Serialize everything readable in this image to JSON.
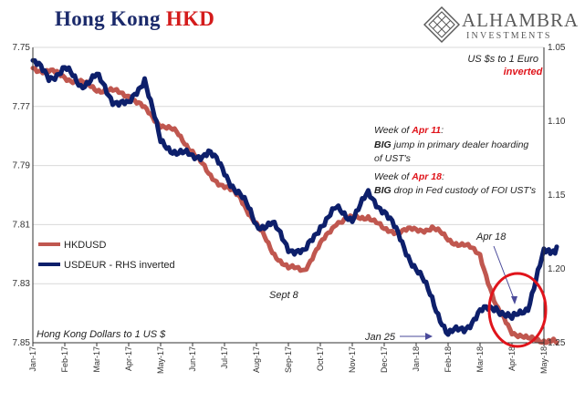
{
  "title": {
    "part1": "Hong Kong ",
    "part2": "HKD"
  },
  "brand": {
    "name": "ALHAMBRA",
    "sub": "INVESTMENTS"
  },
  "colors": {
    "hkdusd": "#c0574f",
    "usdeur": "#0d1f6b",
    "accent": "#e0141b",
    "axis": "#555555",
    "grid": "#d9d9d9",
    "title_blue": "#1b2a6b"
  },
  "chart_data": {
    "type": "line",
    "legend_placement": "left-middle",
    "grid": true,
    "x_ticks": [
      "Jan-17",
      "Feb-17",
      "Mar-17",
      "Apr-17",
      "May-17",
      "Jun-17",
      "Jul-17",
      "Aug-17",
      "Sep-17",
      "Oct-17",
      "Nov-17",
      "Dec-17",
      "Jan-18",
      "Feb-18",
      "Mar-18",
      "Apr-18",
      "May-18"
    ],
    "y_left": {
      "ticks": [
        "7.75",
        "7.77",
        "7.79",
        "7.81",
        "7.83",
        "7.85"
      ],
      "range": [
        7.75,
        7.85
      ],
      "inverted": true
    },
    "y_right": {
      "ticks": [
        "1.05",
        "1.10",
        "1.15",
        "1.20",
        "1.25"
      ],
      "range": [
        1.05,
        1.25
      ],
      "inverted": true
    },
    "series": [
      {
        "name": "HKDUSD",
        "axis": "left",
        "x": [
          0,
          0.5,
          1,
          1.5,
          2,
          2.5,
          3,
          3.5,
          4,
          4.5,
          5,
          5.5,
          6,
          6.5,
          7,
          7.5,
          8,
          8.5,
          9,
          9.5,
          10,
          10.5,
          11,
          11.5,
          12,
          12.5,
          13,
          13.5,
          14,
          14.5,
          15,
          15.5,
          16,
          16.4
        ],
        "values": [
          7.757,
          7.758,
          7.76,
          7.762,
          7.764,
          7.765,
          7.766,
          7.771,
          7.776,
          7.779,
          7.785,
          7.793,
          7.797,
          7.801,
          7.81,
          7.819,
          7.825,
          7.825,
          7.817,
          7.809,
          7.808,
          7.807,
          7.812,
          7.812,
          7.812,
          7.811,
          7.815,
          7.817,
          7.82,
          7.838,
          7.846,
          7.849,
          7.849,
          7.85
        ]
      },
      {
        "name": "USDEUR - RHS inverted",
        "axis": "right",
        "x": [
          0,
          0.5,
          1,
          1.5,
          2,
          2.5,
          3,
          3.5,
          4,
          4.5,
          5,
          5.5,
          6,
          6.5,
          7,
          7.5,
          8,
          8.5,
          9,
          9.5,
          10,
          10.5,
          11,
          11.5,
          12,
          12.5,
          13,
          13.5,
          14,
          14.5,
          15,
          15.5,
          16,
          16.4
        ],
        "values": [
          1.06,
          1.07,
          1.065,
          1.075,
          1.07,
          1.085,
          1.09,
          1.07,
          1.115,
          1.12,
          1.125,
          1.12,
          1.135,
          1.15,
          1.17,
          1.17,
          1.185,
          1.19,
          1.17,
          1.16,
          1.165,
          1.15,
          1.16,
          1.18,
          1.2,
          1.22,
          1.245,
          1.24,
          1.23,
          1.225,
          1.235,
          1.225,
          1.19,
          1.185
        ]
      }
    ],
    "annotations": [
      {
        "id": "usd-euro",
        "line1": "US $s to 1 Euro",
        "line2": "inverted"
      },
      {
        "id": "apr11",
        "prefix": "Week of ",
        "date": "Apr 11",
        "suffix": ":",
        "bold": "BIG",
        "text1": " jump in primary dealer hoarding",
        "text2": "of UST's"
      },
      {
        "id": "apr18",
        "prefix": "Week of ",
        "date": "Apr 18",
        "suffix": ":",
        "bold": "BIG",
        "text1": " drop in Fed custody of FOI UST's"
      },
      {
        "id": "apr18-label",
        "text": "Apr 18"
      },
      {
        "id": "sept8",
        "text": "Sept 8"
      },
      {
        "id": "jan25",
        "text": "Jan 25"
      },
      {
        "id": "hk-dollars",
        "text": "Hong Kong Dollars to 1 US $"
      }
    ]
  }
}
